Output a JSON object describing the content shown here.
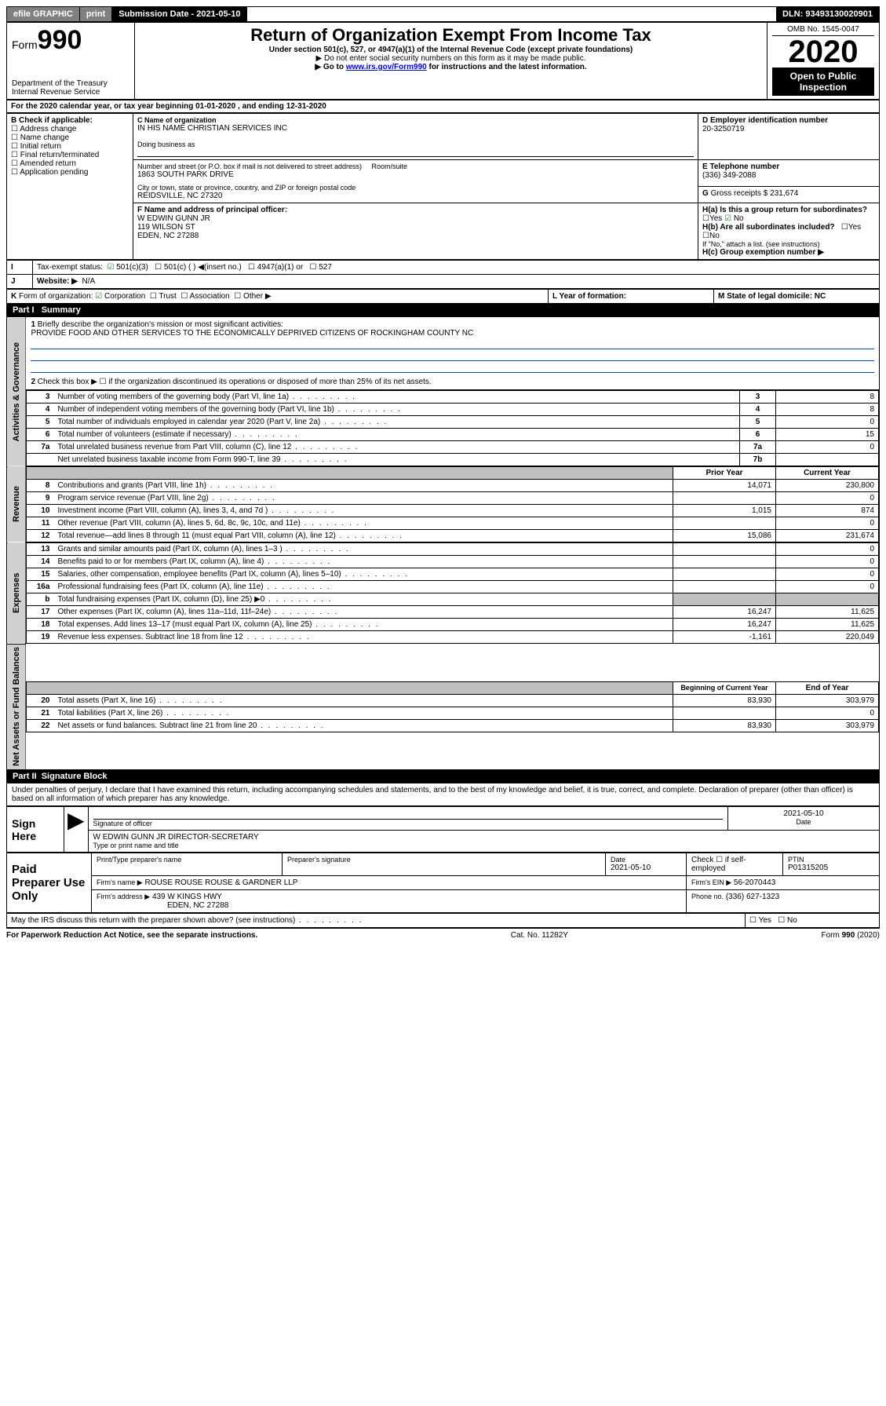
{
  "topbar": {
    "efile": "efile GRAPHIC",
    "print": "print",
    "submission": "Submission Date - 2021-05-10",
    "dln": "DLN: 93493130020901"
  },
  "header": {
    "form_prefix": "Form",
    "form_no": "990",
    "dept": "Department of the Treasury\nInternal Revenue Service",
    "title": "Return of Organization Exempt From Income Tax",
    "subtitle": "Under section 501(c), 527, or 4947(a)(1) of the Internal Revenue Code (except private foundations)",
    "note1": "▶ Do not enter social security numbers on this form as it may be made public.",
    "note2_pre": "▶ Go to ",
    "note2_link": "www.irs.gov/Form990",
    "note2_post": " for instructions and the latest information.",
    "omb": "OMB No. 1545-0047",
    "year": "2020",
    "open_public": "Open to Public Inspection"
  },
  "line_a": "For the 2020 calendar year, or tax year beginning 01-01-2020    , and ending 12-31-2020",
  "box_b": {
    "label": "Check if applicable:",
    "items": [
      "Address change",
      "Name change",
      "Initial return",
      "Final return/terminated",
      "Amended return",
      "Application pending"
    ]
  },
  "box_c": {
    "label_name": "Name of organization",
    "name": "IN HIS NAME CHRISTIAN SERVICES INC",
    "dba_label": "Doing business as",
    "dba": "",
    "addr_label": "Number and street (or P.O. box if mail is not delivered to street address)",
    "addr": "1863 SOUTH PARK DRIVE",
    "room_label": "Room/suite",
    "city_label": "City or town, state or province, country, and ZIP or foreign postal code",
    "city": "REIDSVILLE, NC  27320"
  },
  "box_d": {
    "label": "D Employer identification number",
    "val": "20-3250719"
  },
  "box_e": {
    "label": "E Telephone number",
    "val": "(336) 349-2088"
  },
  "box_g": {
    "label": "G",
    "text": "Gross receipts $ 231,674"
  },
  "box_f": {
    "label": "F  Name and address of principal officer:",
    "line1": "W EDWIN GUNN JR",
    "line2": "119 WILSON ST",
    "line3": "EDEN, NC  27288"
  },
  "box_h": {
    "a_label": "H(a)  Is this a group return for subordinates?",
    "a_yes": "Yes",
    "a_no": "No",
    "b_label": "H(b)  Are all subordinates included?",
    "b_yes": "Yes",
    "b_no": "No",
    "b_note": "If \"No,\" attach a list. (see instructions)",
    "c_label": "H(c)  Group exemption number ▶"
  },
  "line_i": {
    "label": "Tax-exempt status:",
    "o1": "501(c)(3)",
    "o2": "501(c) (  ) ◀(insert no.)",
    "o3": "4947(a)(1) or",
    "o4": "527"
  },
  "line_j": {
    "label": "Website: ▶",
    "val": "N/A"
  },
  "line_k": {
    "label": "Form of organization:",
    "o1": "Corporation",
    "o2": "Trust",
    "o3": "Association",
    "o4": "Other ▶"
  },
  "line_l": {
    "label": "L Year of formation:"
  },
  "line_m": {
    "label": "M State of legal domicile: NC"
  },
  "part1": {
    "hdr": "Part I",
    "title": "Summary",
    "q1": "Briefly describe the organization's mission or most significant activities:",
    "mission": "PROVIDE FOOD AND OTHER SERVICES TO THE ECONOMICALLY DEPRIVED CITIZENS OF ROCKINGHAM COUNTY NC",
    "q2": "Check this box ▶ ☐  if the organization discontinued its operations or disposed of more than 25% of its net assets.",
    "rows_gov": [
      {
        "n": "3",
        "d": "Number of voting members of the governing body (Part VI, line 1a)",
        "c": "3",
        "v": "8"
      },
      {
        "n": "4",
        "d": "Number of independent voting members of the governing body (Part VI, line 1b)",
        "c": "4",
        "v": "8"
      },
      {
        "n": "5",
        "d": "Total number of individuals employed in calendar year 2020 (Part V, line 2a)",
        "c": "5",
        "v": "0"
      },
      {
        "n": "6",
        "d": "Total number of volunteers (estimate if necessary)",
        "c": "6",
        "v": "15"
      },
      {
        "n": "7a",
        "d": "Total unrelated business revenue from Part VIII, column (C), line 12",
        "c": "7a",
        "v": "0"
      },
      {
        "n": "",
        "d": "Net unrelated business taxable income from Form 990-T, line 39",
        "c": "7b",
        "v": ""
      }
    ],
    "col_prior": "Prior Year",
    "col_curr": "Current Year",
    "rows_rev": [
      {
        "n": "8",
        "d": "Contributions and grants (Part VIII, line 1h)",
        "p": "14,071",
        "c": "230,800"
      },
      {
        "n": "9",
        "d": "Program service revenue (Part VIII, line 2g)",
        "p": "",
        "c": "0"
      },
      {
        "n": "10",
        "d": "Investment income (Part VIII, column (A), lines 3, 4, and 7d )",
        "p": "1,015",
        "c": "874"
      },
      {
        "n": "11",
        "d": "Other revenue (Part VIII, column (A), lines 5, 6d, 8c, 9c, 10c, and 11e)",
        "p": "",
        "c": "0"
      },
      {
        "n": "12",
        "d": "Total revenue—add lines 8 through 11 (must equal Part VIII, column (A), line 12)",
        "p": "15,086",
        "c": "231,674"
      }
    ],
    "rows_exp": [
      {
        "n": "13",
        "d": "Grants and similar amounts paid (Part IX, column (A), lines 1–3 )",
        "p": "",
        "c": "0"
      },
      {
        "n": "14",
        "d": "Benefits paid to or for members (Part IX, column (A), line 4)",
        "p": "",
        "c": "0"
      },
      {
        "n": "15",
        "d": "Salaries, other compensation, employee benefits (Part IX, column (A), lines 5–10)",
        "p": "",
        "c": "0"
      },
      {
        "n": "16a",
        "d": "Professional fundraising fees (Part IX, column (A), line 11e)",
        "p": "",
        "c": "0"
      },
      {
        "n": "b",
        "d": "Total fundraising expenses (Part IX, column (D), line 25) ▶0",
        "p": "shade",
        "c": "shade"
      },
      {
        "n": "17",
        "d": "Other expenses (Part IX, column (A), lines 11a–11d, 11f–24e)",
        "p": "16,247",
        "c": "11,625"
      },
      {
        "n": "18",
        "d": "Total expenses. Add lines 13–17 (must equal Part IX, column (A), line 25)",
        "p": "16,247",
        "c": "11,625"
      },
      {
        "n": "19",
        "d": "Revenue less expenses. Subtract line 18 from line 12",
        "p": "-1,161",
        "c": "220,049"
      }
    ],
    "col_begin": "Beginning of Current Year",
    "col_end": "End of Year",
    "rows_net": [
      {
        "n": "20",
        "d": "Total assets (Part X, line 16)",
        "p": "83,930",
        "c": "303,979"
      },
      {
        "n": "21",
        "d": "Total liabilities (Part X, line 26)",
        "p": "",
        "c": "0"
      },
      {
        "n": "22",
        "d": "Net assets or fund balances. Subtract line 21 from line 20",
        "p": "83,930",
        "c": "303,979"
      }
    ]
  },
  "vtabs": {
    "gov": "Activities & Governance",
    "rev": "Revenue",
    "exp": "Expenses",
    "net": "Net Assets or Fund Balances"
  },
  "part2": {
    "hdr": "Part II",
    "title": "Signature Block",
    "decl": "Under penalties of perjury, I declare that I have examined this return, including accompanying schedules and statements, and to the best of my knowledge and belief, it is true, correct, and complete. Declaration of preparer (other than officer) is based on all information of which preparer has any knowledge.",
    "sign_here": "Sign Here",
    "sig_officer": "Signature of officer",
    "sig_date": "2021-05-10",
    "date_lbl": "Date",
    "typed": "W EDWIN GUNN JR  DIRECTOR-SECRETARY",
    "typed_lbl": "Type or print name and title",
    "paid": "Paid Preparer Use Only",
    "p_name_lbl": "Print/Type preparer's name",
    "p_sig_lbl": "Preparer's signature",
    "p_date_lbl": "Date",
    "p_date": "2021-05-10",
    "p_check": "Check ☐ if self-employed",
    "p_ptin_lbl": "PTIN",
    "p_ptin": "P01315205",
    "firm_name_lbl": "Firm's name    ▶",
    "firm_name": "ROUSE ROUSE ROUSE & GARDNER LLP",
    "firm_ein_lbl": "Firm's EIN ▶",
    "firm_ein": "56-2070443",
    "firm_addr_lbl": "Firm's address ▶",
    "firm_addr1": "439 W KINGS HWY",
    "firm_addr2": "EDEN, NC  27288",
    "firm_phone_lbl": "Phone no.",
    "firm_phone": "(336) 627-1323",
    "discuss": "May the IRS discuss this return with the preparer shown above? (see instructions)",
    "discuss_yes": "Yes",
    "discuss_no": "No"
  },
  "footer": {
    "left": "For Paperwork Reduction Act Notice, see the separate instructions.",
    "mid": "Cat. No. 11282Y",
    "right": "Form 990 (2020)"
  }
}
